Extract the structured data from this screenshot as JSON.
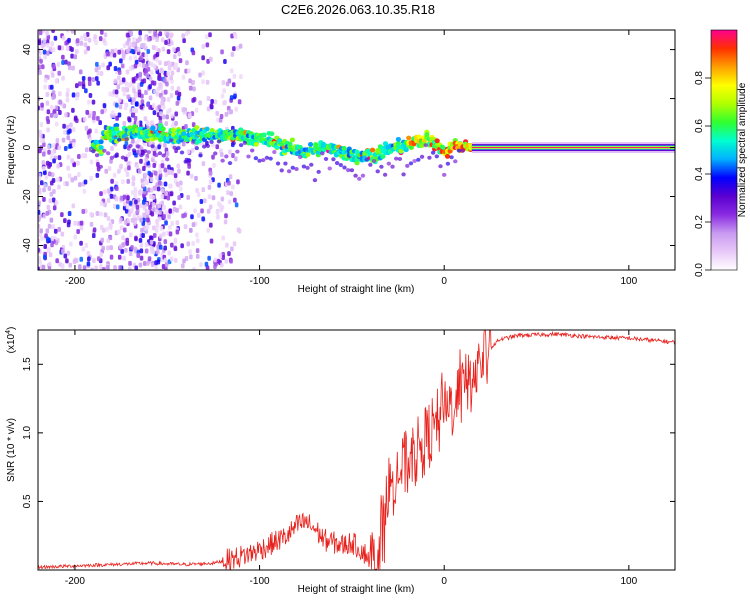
{
  "title": "C2E6.2026.063.10.35.R18",
  "chart_data": [
    {
      "type": "heatmap",
      "name": "spectrogram",
      "xlabel": "Height of straight line (km)",
      "ylabel": "Frequency (Hz)",
      "xlim": [
        -220,
        125
      ],
      "ylim": [
        -50,
        48
      ],
      "xticks": [
        -200,
        -100,
        0,
        100
      ],
      "yticks": [
        -40,
        -20,
        0,
        20,
        40
      ],
      "colorbar": {
        "label": "Normalized spectral amplitude",
        "range": [
          0.0,
          1.0
        ],
        "ticks": [
          0.0,
          0.2,
          0.4,
          0.6,
          0.8
        ],
        "tick_labels": [
          "0.0",
          "0.2",
          "0.4",
          "0.6",
          "0.8"
        ],
        "colormap": [
          "#ffffff",
          "#e8c8f8",
          "#c89af0",
          "#8a2be2",
          "#5a00d0",
          "#0000ff",
          "#00b0ff",
          "#00ffd0",
          "#30ff30",
          "#b0ff00",
          "#ffff00",
          "#ffa000",
          "#ff3000",
          "#ff0090"
        ]
      },
      "ridge": [
        {
          "x": -185,
          "f": 5
        },
        {
          "x": -170,
          "f": 6
        },
        {
          "x": -150,
          "f": 5
        },
        {
          "x": -130,
          "f": 5
        },
        {
          "x": -110,
          "f": 5
        },
        {
          "x": -95,
          "f": 3
        },
        {
          "x": -85,
          "f": 0
        },
        {
          "x": -75,
          "f": -2
        },
        {
          "x": -65,
          "f": 0
        },
        {
          "x": -55,
          "f": -2
        },
        {
          "x": -45,
          "f": -4
        },
        {
          "x": -35,
          "f": -2
        },
        {
          "x": -25,
          "f": 0
        },
        {
          "x": -15,
          "f": 2
        },
        {
          "x": -10,
          "f": 4
        },
        {
          "x": -5,
          "f": 1
        },
        {
          "x": 0,
          "f": -2
        },
        {
          "x": 5,
          "f": 1
        },
        {
          "x": 15,
          "f": 0
        },
        {
          "x": 125,
          "f": 0
        }
      ],
      "carrier": {
        "x_start": 15,
        "x_end": 125,
        "f": 0
      }
    },
    {
      "type": "line",
      "name": "snr",
      "xlabel": "Height of straight line (km)",
      "ylabel": "SNR (10 * v/v)",
      "yscale_label": "(x10",
      "yscale_exp": "4",
      "xlim": [
        -220,
        125
      ],
      "ylim": [
        0.0,
        1.75
      ],
      "xticks": [
        -200,
        -100,
        0,
        100
      ],
      "yticks": [
        0.5,
        1.0,
        1.5
      ],
      "ytick_labels": [
        "0.5",
        "1.0",
        "1.5"
      ],
      "color": "#e8211c",
      "series": [
        {
          "name": "SNR",
          "points": [
            [
              -220,
              0.02
            ],
            [
              -200,
              0.03
            ],
            [
              -180,
              0.04
            ],
            [
              -160,
              0.05
            ],
            [
              -140,
              0.04
            ],
            [
              -125,
              0.05
            ],
            [
              -115,
              0.08
            ],
            [
              -105,
              0.12
            ],
            [
              -95,
              0.18
            ],
            [
              -85,
              0.25
            ],
            [
              -80,
              0.32
            ],
            [
              -75,
              0.35
            ],
            [
              -70,
              0.3
            ],
            [
              -65,
              0.22
            ],
            [
              -60,
              0.2
            ],
            [
              -55,
              0.18
            ],
            [
              -50,
              0.2
            ],
            [
              -45,
              0.15
            ],
            [
              -40,
              0.08
            ],
            [
              -37,
              0.06
            ],
            [
              -33,
              0.3
            ],
            [
              -30,
              0.6
            ],
            [
              -25,
              0.7
            ],
            [
              -20,
              0.78
            ],
            [
              -15,
              0.85
            ],
            [
              -10,
              0.95
            ],
            [
              -5,
              1.05
            ],
            [
              0,
              1.12
            ],
            [
              5,
              1.22
            ],
            [
              10,
              1.3
            ],
            [
              15,
              1.4
            ],
            [
              20,
              1.52
            ],
            [
              25,
              1.62
            ],
            [
              30,
              1.68
            ],
            [
              40,
              1.71
            ],
            [
              60,
              1.72
            ],
            [
              80,
              1.7
            ],
            [
              100,
              1.69
            ],
            [
              125,
              1.66
            ]
          ]
        }
      ]
    }
  ]
}
